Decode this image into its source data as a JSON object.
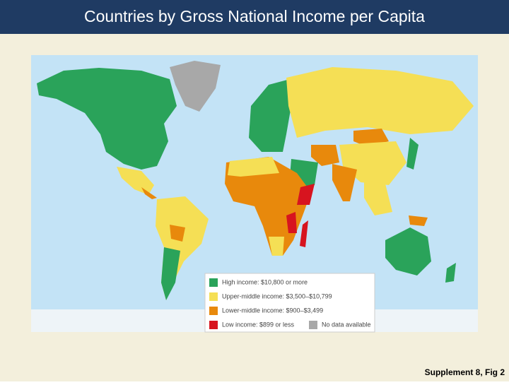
{
  "header": {
    "title": "Countries by Gross National Income per Capita"
  },
  "legend": [
    {
      "label": "High income: $10,800 or more",
      "color": "#2aa35a"
    },
    {
      "label": "Upper-middle income: $3,500–$10,799",
      "color": "#f5df55"
    },
    {
      "label": "Lower-middle income: $900–$3,499",
      "color": "#e8890c"
    },
    {
      "label": "Low income: $899 or less",
      "color": "#d7141f"
    },
    {
      "label": "No data available",
      "color": "#a8a8a8"
    }
  ],
  "caption": "Supplement 8, Fig 2"
}
